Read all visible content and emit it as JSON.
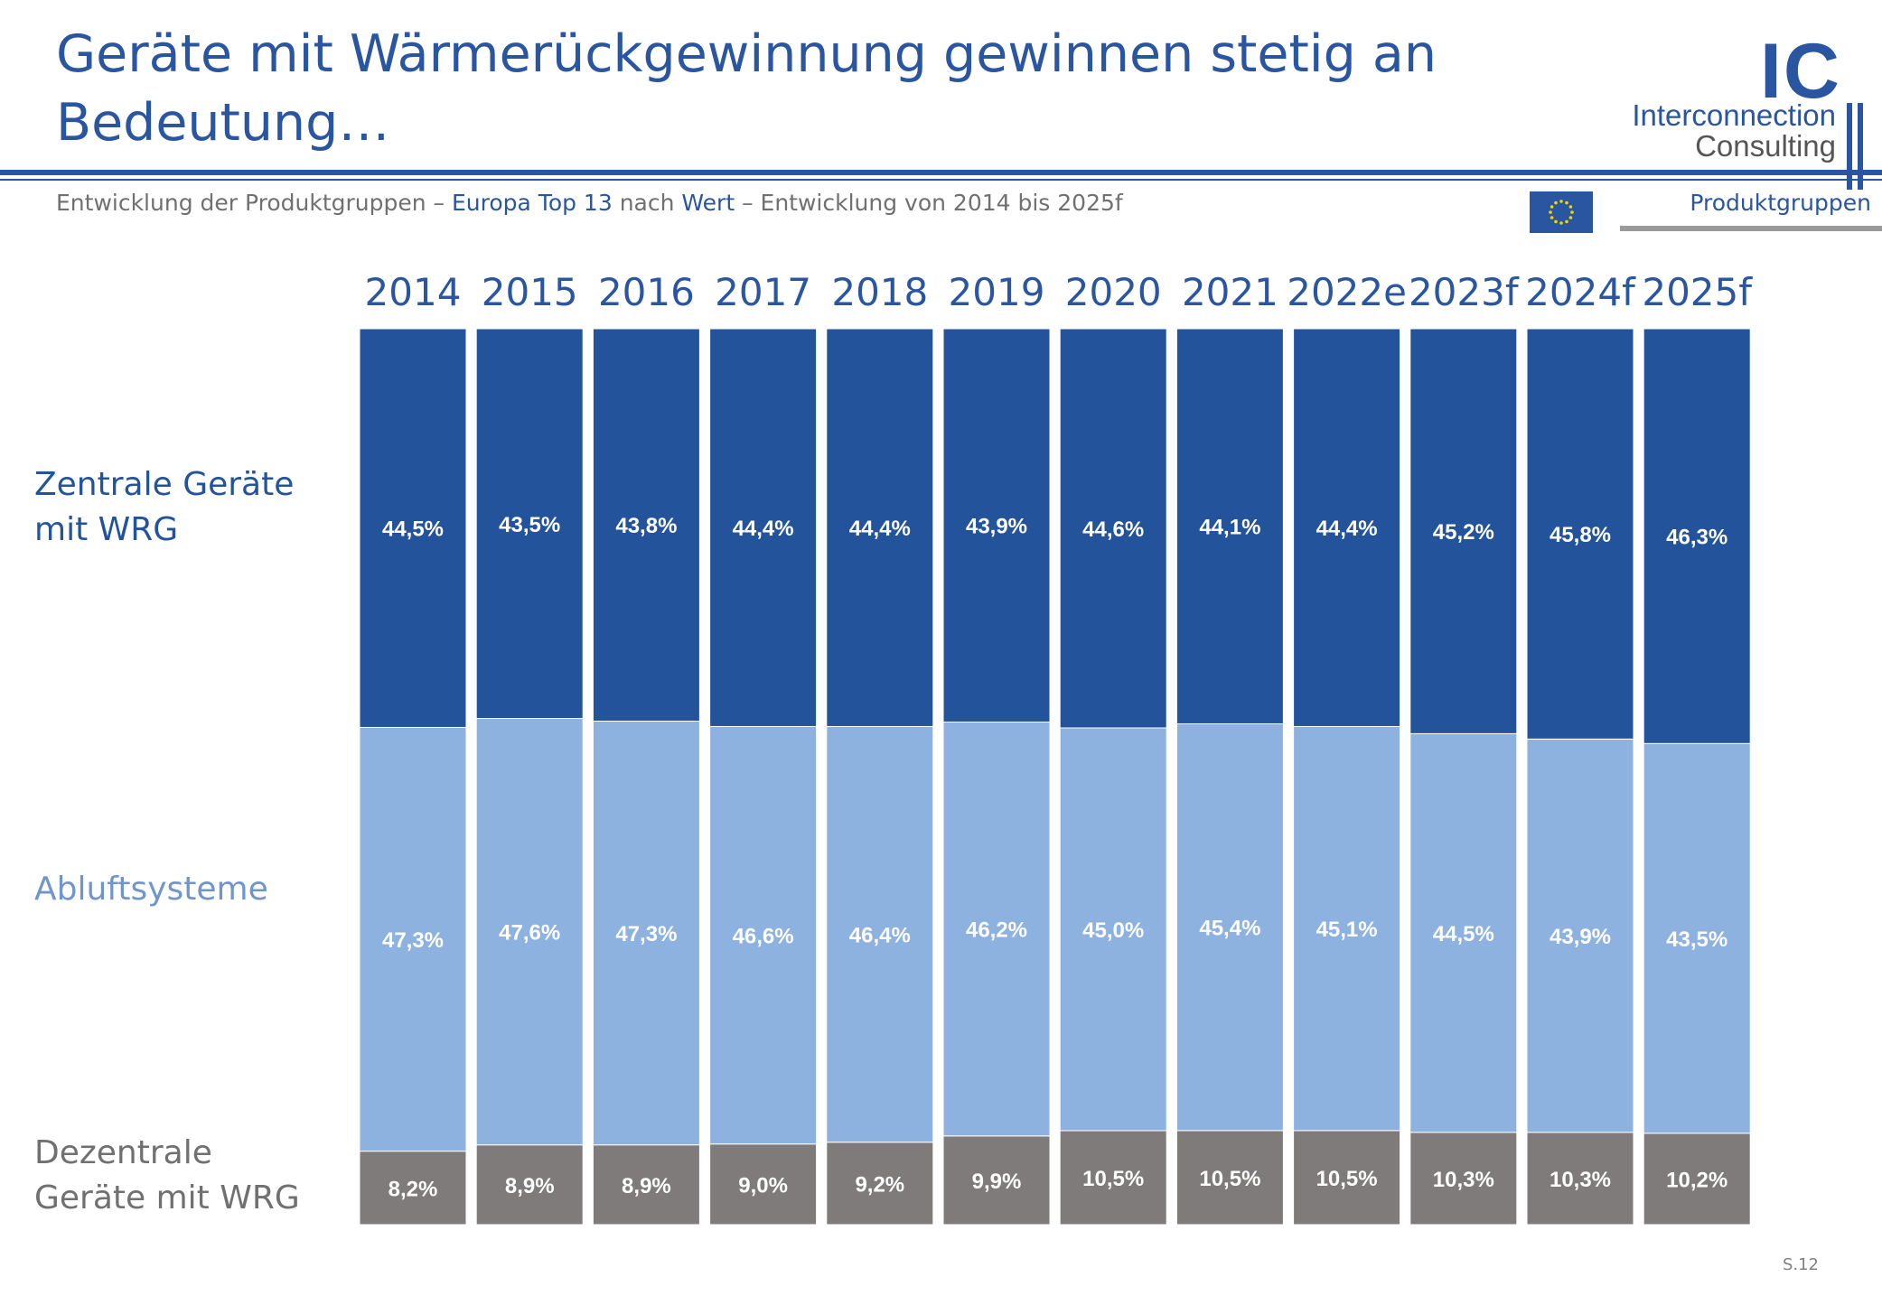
{
  "header": {
    "title": "Geräte mit Wärmerückgewinnung gewinnen stetig an Bedeutung…",
    "subtitle": {
      "part1": "Entwicklung der Produktgruppen – ",
      "part2": "Europa Top 13",
      "part3": " nach ",
      "part4": "Wert",
      "part5": " – Entwicklung von 2014 bis 2025f"
    },
    "tab_label": "Produktgruppen"
  },
  "logo": {
    "mark": "IC",
    "line1": "Interconnection",
    "line2": "Consulting"
  },
  "footer": {
    "page_number": "S.12"
  },
  "colors": {
    "brand": "#2a55a0",
    "zentrale": "#23539b",
    "abluft": "#8eb2e0",
    "dezentrale": "#7f7b7b",
    "legend_abluft_text": "#6f95cc",
    "legend_dezentrale_text": "#707070"
  },
  "chart_data": {
    "type": "bar",
    "stacked": true,
    "normalized": true,
    "categories": [
      "2014",
      "2015",
      "2016",
      "2017",
      "2018",
      "2019",
      "2020",
      "2021",
      "2022e",
      "2023f",
      "2024f",
      "2025f"
    ],
    "series": [
      {
        "name": "Dezentrale Geräte mit WRG",
        "values": [
          8.2,
          8.9,
          8.9,
          9.0,
          9.2,
          9.9,
          10.5,
          10.5,
          10.5,
          10.3,
          10.3,
          10.2
        ],
        "labels": [
          "8,2%",
          "8,9%",
          "8,9%",
          "9,0%",
          "9,2%",
          "9,9%",
          "10,5%",
          "10,5%",
          "10,5%",
          "10,3%",
          "10,3%",
          "10,2%"
        ],
        "color": "#7f7b7b"
      },
      {
        "name": "Abluftsysteme",
        "values": [
          47.3,
          47.6,
          47.3,
          46.6,
          46.4,
          46.2,
          45.0,
          45.4,
          45.1,
          44.5,
          43.9,
          43.5
        ],
        "labels": [
          "47,3%",
          "47,6%",
          "47,3%",
          "46,6%",
          "46,4%",
          "46,2%",
          "45,0%",
          "45,4%",
          "45,1%",
          "44,5%",
          "43,9%",
          "43,5%"
        ],
        "color": "#8eb2e0"
      },
      {
        "name": "Zentrale Geräte mit WRG",
        "values": [
          44.5,
          43.5,
          43.8,
          44.4,
          44.4,
          43.9,
          44.6,
          44.1,
          44.4,
          45.2,
          45.8,
          46.3
        ],
        "labels": [
          "44,5%",
          "43,5%",
          "43,8%",
          "44,4%",
          "44,4%",
          "43,9%",
          "44,6%",
          "44,1%",
          "44,4%",
          "45,2%",
          "45,8%",
          "46,3%"
        ],
        "color": "#23539b"
      }
    ],
    "legend_placement": "left",
    "legend": {
      "zentrale": [
        "Zentrale Geräte",
        "mit WRG"
      ],
      "abluft": [
        "Abluftsysteme"
      ],
      "dezentrale": [
        "Dezentrale",
        "Geräte mit WRG"
      ]
    },
    "grid": false
  }
}
